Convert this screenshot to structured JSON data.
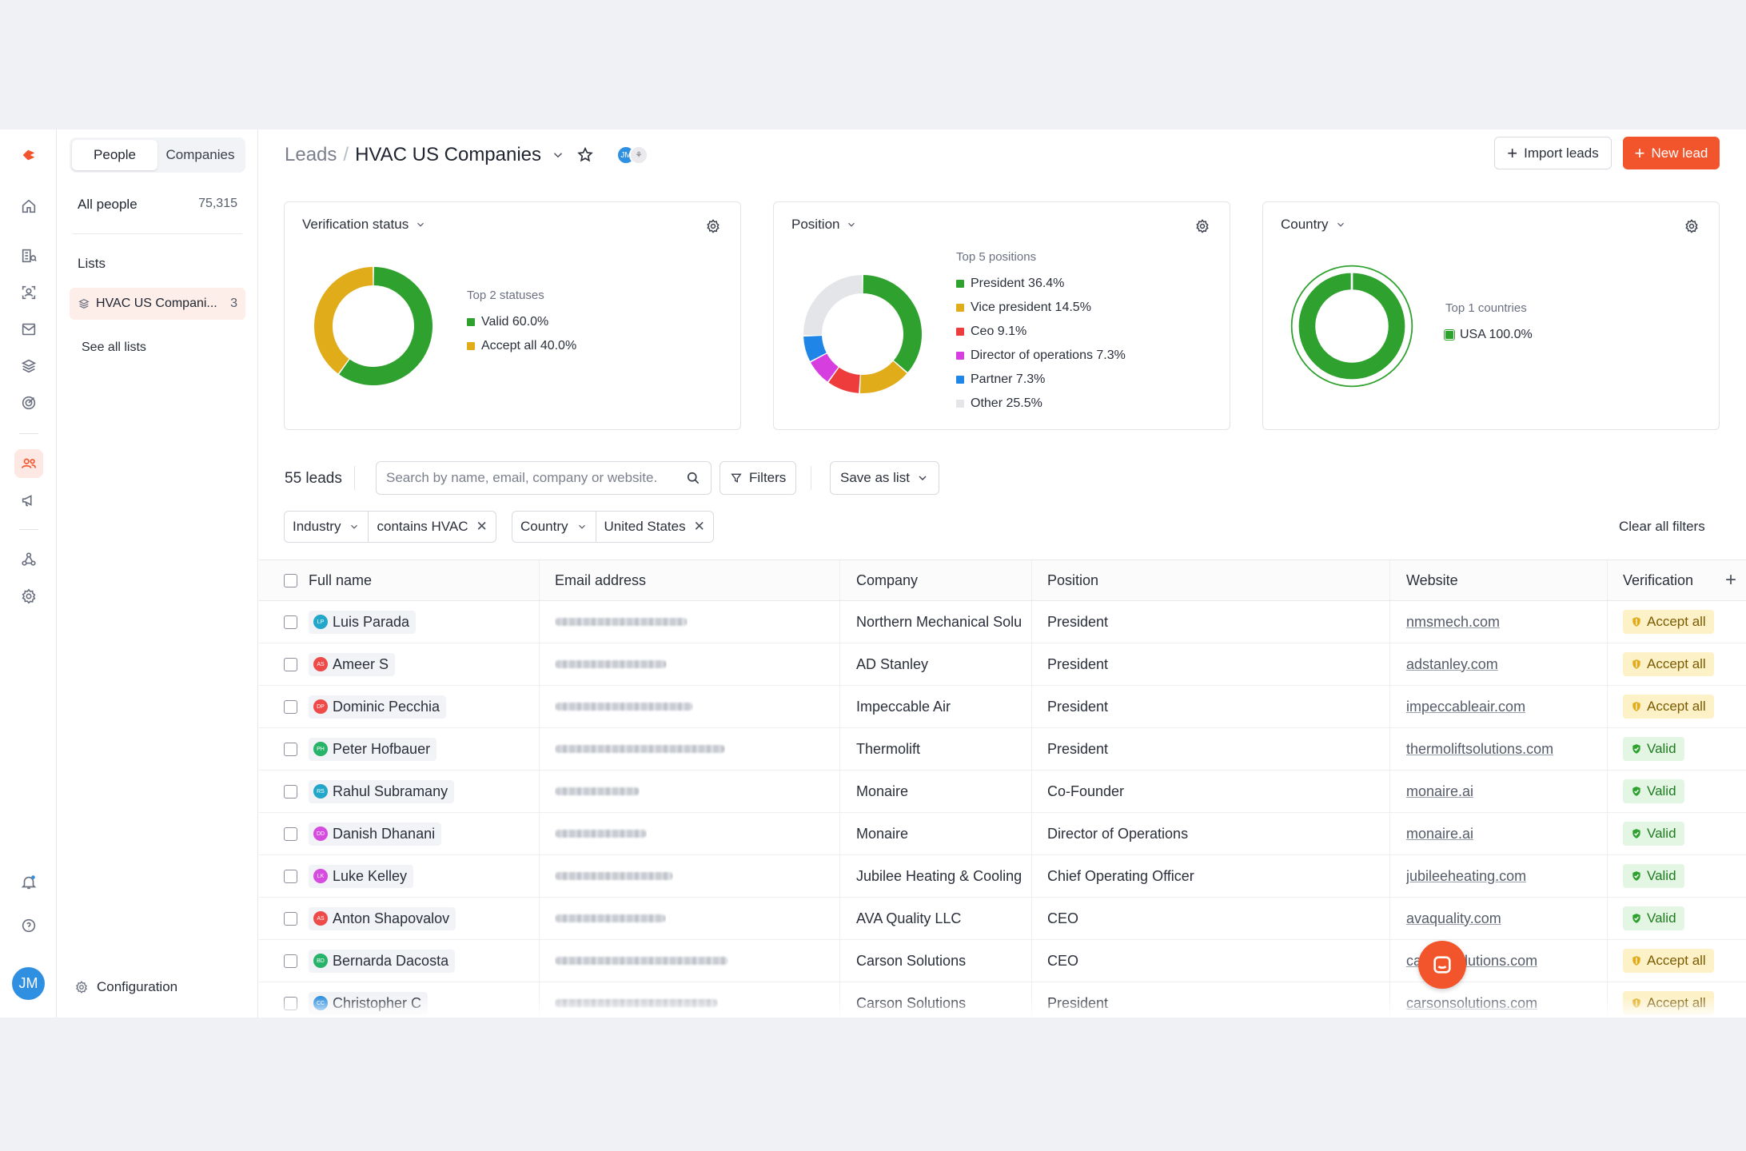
{
  "rail": {
    "icons": [
      "logo-icon",
      "home-icon",
      "companies-icon",
      "people-search-icon",
      "mail-icon",
      "layers-icon",
      "target-icon",
      "people-icon",
      "megaphone-icon",
      "network-icon",
      "settings-icon",
      "bell-icon",
      "help-icon"
    ],
    "avatar": "JM"
  },
  "side": {
    "tabs": [
      "People",
      "Companies"
    ],
    "all_people": {
      "label": "All people",
      "count": "75,315"
    },
    "lists_heading": "Lists",
    "list_item": {
      "label": "HVAC US Compani...",
      "count": "3"
    },
    "see_all": "See all lists",
    "configuration": "Configuration"
  },
  "header": {
    "crumb_root": "Leads",
    "crumb_sep": "/",
    "crumb_current": "HVAC US Companies",
    "avatar1": "JM",
    "avatar2": "⚘",
    "import_label": "Import leads",
    "new_label": "New lead"
  },
  "cards": {
    "verification": {
      "title": "Verification status",
      "subtitle": "Top 2 statuses",
      "items": [
        {
          "label": "Valid 60.0%",
          "value": 60.0,
          "color": "#2ea12e"
        },
        {
          "label": "Accept all 40.0%",
          "value": 40.0,
          "color": "#e0ac1a"
        }
      ]
    },
    "position": {
      "title": "Position",
      "subtitle": "Top 5 positions",
      "items": [
        {
          "label": "President 36.4%",
          "value": 36.4,
          "color": "#2ea12e"
        },
        {
          "label": "Vice president 14.5%",
          "value": 14.5,
          "color": "#e0ac1a"
        },
        {
          "label": "Ceo 9.1%",
          "value": 9.1,
          "color": "#ee3c3c"
        },
        {
          "label": "Director of operations 7.3%",
          "value": 7.3,
          "color": "#d63ee0"
        },
        {
          "label": "Partner 7.3%",
          "value": 7.3,
          "color": "#1f85e6"
        },
        {
          "label": "Other 25.5%",
          "value": 25.5,
          "color": "#e3e5e8"
        }
      ]
    },
    "country": {
      "title": "Country",
      "subtitle": "Top 1 countries",
      "items": [
        {
          "label": "USA 100.0%",
          "value": 100.0,
          "color": "#2ea12e"
        }
      ]
    }
  },
  "toolbar": {
    "lead_count": "55 leads",
    "search_placeholder": "Search by name, email, company or website.",
    "filters": "Filters",
    "save_as_list": "Save as list",
    "chips": [
      {
        "field": "Industry",
        "value": "contains HVAC"
      },
      {
        "field": "Country",
        "value": "United States"
      }
    ],
    "clear_all": "Clear all filters"
  },
  "table": {
    "columns": [
      "Full name",
      "Email address",
      "Company",
      "Position",
      "Website",
      "Verification"
    ],
    "rows": [
      {
        "initials": "LP",
        "color": "#22a6c9",
        "name": "Luis Parada",
        "company": "Northern Mechanical Solu",
        "position": "President",
        "website": "nmsmech.com",
        "status": "Accept all",
        "status_type": "accept"
      },
      {
        "initials": "AS",
        "color": "#ef4a4a",
        "name": "Ameer S",
        "company": "AD Stanley",
        "position": "President",
        "website": "adstanley.com",
        "status": "Accept all",
        "status_type": "accept"
      },
      {
        "initials": "DP",
        "color": "#ef4a4a",
        "name": "Dominic Pecchia",
        "company": "Impeccable Air",
        "position": "President",
        "website": "impeccableair.com",
        "status": "Accept all",
        "status_type": "accept"
      },
      {
        "initials": "PH",
        "color": "#28b36b",
        "name": "Peter Hofbauer",
        "company": "Thermolift",
        "position": "President",
        "website": "thermoliftsolutions.com",
        "status": "Valid",
        "status_type": "valid"
      },
      {
        "initials": "RS",
        "color": "#22a6c9",
        "name": "Rahul Subramany",
        "company": "Monaire",
        "position": "Co-Founder",
        "website": "monaire.ai",
        "status": "Valid",
        "status_type": "valid"
      },
      {
        "initials": "DD",
        "color": "#d64be0",
        "name": "Danish Dhanani",
        "company": "Monaire",
        "position": "Director of Operations",
        "website": "monaire.ai",
        "status": "Valid",
        "status_type": "valid"
      },
      {
        "initials": "LK",
        "color": "#d64be0",
        "name": "Luke Kelley",
        "company": "Jubilee Heating & Cooling",
        "position": "Chief Operating Officer",
        "website": "jubileeheating.com",
        "status": "Valid",
        "status_type": "valid"
      },
      {
        "initials": "AS",
        "color": "#ef4a4a",
        "name": "Anton Shapovalov",
        "company": "AVA Quality LLC",
        "position": "CEO",
        "website": "avaquality.com",
        "status": "Valid",
        "status_type": "valid"
      },
      {
        "initials": "BD",
        "color": "#28b36b",
        "name": "Bernarda Dacosta",
        "company": "Carson Solutions",
        "position": "CEO",
        "website": "carsonsolutions.com",
        "status": "Accept all",
        "status_type": "accept"
      },
      {
        "initials": "CC",
        "color": "#2f8fe0",
        "name": "Christopher C",
        "company": "Carson Solutions",
        "position": "President",
        "website": "carsonsolutions.com",
        "status": "Accept all",
        "status_type": "accept"
      }
    ]
  }
}
